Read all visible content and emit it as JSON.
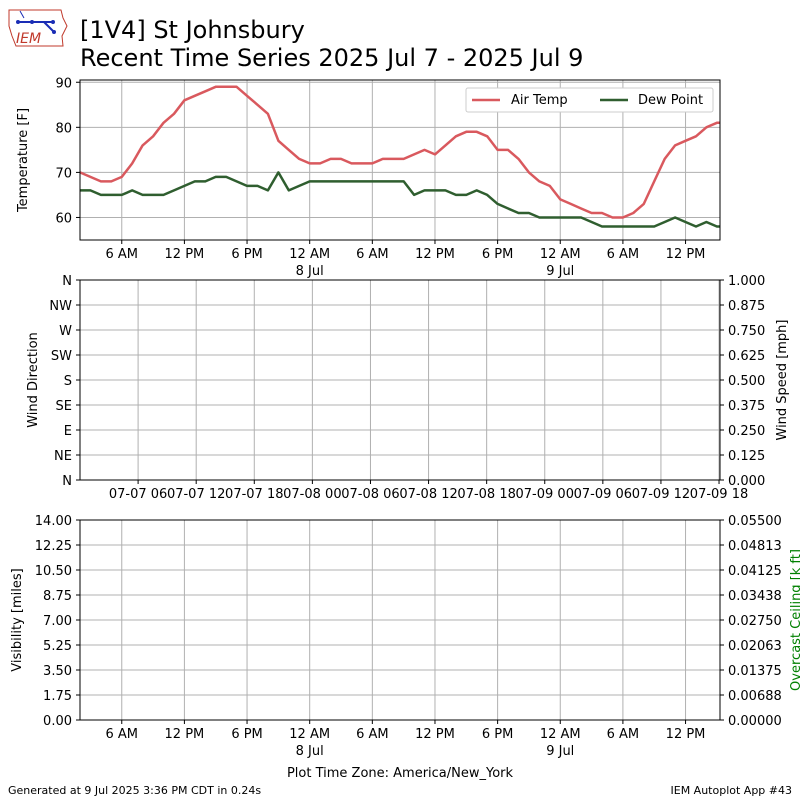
{
  "header": {
    "title_line1": "[1V4] St Johnsbury",
    "title_line2": "Recent Time Series 2025 Jul 7 - 2025 Jul 9",
    "logo_text": "IEM"
  },
  "footer": {
    "generated": "Generated at 9 Jul 2025 3:36 PM CDT in 0.24s",
    "timezone": "Plot Time Zone: America/New_York",
    "app": "IEM Autoplot App #43"
  },
  "colors": {
    "air_temp": "#d9595e",
    "dew_point": "#2f5e2f",
    "ceiling_label": "#008000",
    "grid": "#b0b0b0"
  },
  "chart_data": [
    {
      "type": "line",
      "title": "",
      "xlabel": "",
      "ylabel": "Temperature [F]",
      "x_unit": "hours since 2025-07-07 00:00 America/New_York",
      "xlim": [
        2.0,
        63.3
      ],
      "ylim": [
        55,
        90.5
      ],
      "yticks": [
        "60",
        "70",
        "80",
        "90"
      ],
      "ytick_values": [
        60,
        70,
        80,
        90
      ],
      "xtick_labels": [
        "6 AM",
        "12 PM",
        "6 PM",
        "12 AM",
        "6 AM",
        "12 PM",
        "6 PM",
        "12 AM",
        "6 AM",
        "12 PM"
      ],
      "xtick_hours": [
        6,
        12,
        18,
        24,
        30,
        36,
        42,
        48,
        54,
        60
      ],
      "date_labels": [
        {
          "hour": 24,
          "label": "8 Jul"
        },
        {
          "hour": 48,
          "label": "9 Jul"
        }
      ],
      "grid": true,
      "legend_position": "top-right",
      "series": [
        {
          "name": "Air Temp",
          "x": [
            2,
            3,
            4,
            5,
            6,
            7,
            8,
            9,
            10,
            11,
            12,
            13,
            14,
            15,
            16,
            17,
            18,
            19,
            20,
            21,
            22,
            23,
            24,
            25,
            26,
            27,
            28,
            29,
            30,
            31,
            32,
            33,
            34,
            35,
            36,
            37,
            38,
            39,
            40,
            41,
            42,
            43,
            44,
            45,
            46,
            47,
            48,
            49,
            50,
            51,
            52,
            53,
            54,
            55,
            56,
            57,
            58,
            59,
            60,
            61,
            62,
            63,
            63.3
          ],
          "values": [
            70,
            69,
            68,
            68,
            69,
            72,
            76,
            78,
            81,
            83,
            86,
            87,
            88,
            89,
            89,
            89,
            87,
            85,
            83,
            77,
            75,
            73,
            72,
            72,
            73,
            73,
            72,
            72,
            72,
            73,
            73,
            73,
            74,
            75,
            74,
            76,
            78,
            79,
            79,
            78,
            75,
            75,
            73,
            70,
            68,
            67,
            64,
            63,
            62,
            61,
            61,
            60,
            60,
            61,
            63,
            68,
            73,
            76,
            77,
            78,
            80,
            81,
            81
          ]
        },
        {
          "name": "Dew Point",
          "x": [
            2,
            3,
            4,
            5,
            6,
            7,
            8,
            9,
            10,
            11,
            12,
            13,
            14,
            15,
            16,
            17,
            18,
            19,
            20,
            21,
            22,
            23,
            24,
            25,
            26,
            27,
            28,
            29,
            30,
            31,
            32,
            33,
            34,
            35,
            36,
            37,
            38,
            39,
            40,
            41,
            42,
            43,
            44,
            45,
            46,
            47,
            48,
            49,
            50,
            51,
            52,
            53,
            54,
            55,
            56,
            57,
            58,
            59,
            60,
            61,
            62,
            63,
            63.3
          ],
          "values": [
            66,
            66,
            65,
            65,
            65,
            66,
            65,
            65,
            65,
            66,
            67,
            68,
            68,
            69,
            69,
            68,
            67,
            67,
            66,
            70,
            66,
            67,
            68,
            68,
            68,
            68,
            68,
            68,
            68,
            68,
            68,
            68,
            65,
            66,
            66,
            66,
            65,
            65,
            66,
            65,
            63,
            62,
            61,
            61,
            60,
            60,
            60,
            60,
            60,
            59,
            58,
            58,
            58,
            58,
            58,
            58,
            59,
            60,
            59,
            58,
            59,
            58,
            58
          ]
        }
      ]
    },
    {
      "type": "line",
      "title": "",
      "xlabel": "",
      "ylabel": "Wind Direction",
      "ylabel_right": "Wind Speed [mph]",
      "yticks_left": [
        "N",
        "NE",
        "E",
        "SE",
        "S",
        "SW",
        "W",
        "NW",
        "N"
      ],
      "yticks_right": [
        "0.000",
        "0.125",
        "0.250",
        "0.375",
        "0.500",
        "0.625",
        "0.750",
        "0.875",
        "1.000"
      ],
      "xtick_labels": [
        "07-07 06",
        "07-07 12",
        "07-07 18",
        "07-08 00",
        "07-08 06",
        "07-08 12",
        "07-08 18",
        "07-09 00",
        "07-09 06",
        "07-09 12",
        "07-09 18"
      ],
      "xtick_hours": [
        6,
        12,
        18,
        24,
        30,
        36,
        42,
        48,
        54,
        60,
        66
      ],
      "xlim": [
        0,
        66.1
      ],
      "ylim_left": [
        0,
        360
      ],
      "ylim_right": [
        0,
        1
      ],
      "grid": true,
      "series": []
    },
    {
      "type": "line",
      "title": "",
      "xlabel": "Plot Time Zone: America/New_York",
      "ylabel": "Visibility [miles]",
      "ylabel_right": "Overcast Ceiling [k ft]",
      "yticks_left": [
        "0.00",
        "1.75",
        "3.50",
        "5.25",
        "7.00",
        "8.75",
        "10.50",
        "12.25",
        "14.00"
      ],
      "yticks_right": [
        "0.00000",
        "0.00688",
        "0.01375",
        "0.02063",
        "0.02750",
        "0.03438",
        "0.04125",
        "0.04813",
        "0.05500"
      ],
      "ylim_left": [
        0,
        14
      ],
      "ylim_right": [
        0,
        0.055
      ],
      "xtick_labels": [
        "6 AM",
        "12 PM",
        "6 PM",
        "12 AM",
        "6 AM",
        "12 PM",
        "6 PM",
        "12 AM",
        "6 AM",
        "12 PM"
      ],
      "xtick_hours": [
        6,
        12,
        18,
        24,
        30,
        36,
        42,
        48,
        54,
        60
      ],
      "date_labels": [
        {
          "hour": 24,
          "label": "8 Jul"
        },
        {
          "hour": 48,
          "label": "9 Jul"
        }
      ],
      "xlim": [
        2.0,
        63.3
      ],
      "grid": true,
      "series": []
    }
  ]
}
